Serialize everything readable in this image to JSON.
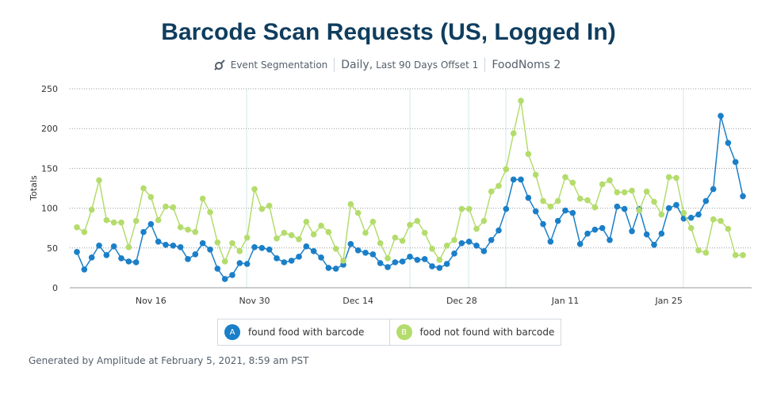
{
  "chart_data": {
    "type": "line",
    "title": "Barcode Scan Requests (US, Logged In)",
    "analysis": "Event Segmentation",
    "interval": "Daily,",
    "range": "Last 90 Days Offset 1",
    "project": "FoodNoms 2",
    "y_label": "Totals",
    "footer": "Generated by Amplitude at February 5, 2021, 8:59 am PST",
    "ylim": [
      0,
      250
    ],
    "yticks": [
      0,
      50,
      100,
      150,
      200,
      250
    ],
    "grid": true,
    "categories": [
      null,
      null,
      null,
      null,
      null,
      null,
      null,
      null,
      null,
      null,
      "Nov 16",
      null,
      null,
      null,
      null,
      null,
      null,
      null,
      null,
      null,
      null,
      null,
      null,
      null,
      "Nov 30",
      null,
      null,
      null,
      null,
      null,
      null,
      null,
      null,
      null,
      null,
      null,
      null,
      null,
      "Dec 14",
      null,
      null,
      null,
      null,
      null,
      null,
      null,
      null,
      null,
      null,
      null,
      null,
      null,
      "Dec 28",
      null,
      null,
      null,
      null,
      null,
      null,
      null,
      null,
      null,
      null,
      null,
      null,
      null,
      "Jan 11",
      null,
      null,
      null,
      null,
      null,
      null,
      null,
      null,
      null,
      null,
      null,
      null,
      null,
      "Jan 25",
      null,
      null,
      null,
      null,
      null,
      null,
      null,
      null,
      null,
      null
    ],
    "series": [
      {
        "name": "found food with barcode",
        "marker_label": "A",
        "color": "#1a7fc8",
        "values": [
          45,
          23,
          38,
          53,
          41,
          52,
          37,
          33,
          32,
          70,
          80,
          58,
          54,
          53,
          51,
          36,
          42,
          56,
          48,
          24,
          11,
          16,
          31,
          30,
          51,
          50,
          48,
          37,
          32,
          34,
          39,
          52,
          46,
          38,
          25,
          24,
          29,
          55,
          47,
          44,
          42,
          31,
          26,
          32,
          33,
          39,
          35,
          36,
          27,
          25,
          30,
          43,
          56,
          58,
          53,
          46,
          60,
          72,
          99,
          136,
          136,
          113,
          96,
          80,
          58,
          84,
          97,
          94,
          55,
          68,
          73,
          75,
          60,
          102,
          99,
          71,
          99,
          67,
          54,
          68,
          100,
          104,
          87,
          88,
          92,
          109,
          124,
          216,
          182,
          158,
          115
        ]
      },
      {
        "name": "food not found with barcode",
        "marker_label": "B",
        "color": "#b4dc6c",
        "values": [
          76,
          70,
          98,
          135,
          85,
          82,
          82,
          51,
          84,
          125,
          114,
          85,
          102,
          101,
          76,
          73,
          70,
          112,
          95,
          57,
          33,
          56,
          46,
          63,
          124,
          99,
          103,
          62,
          69,
          66,
          61,
          83,
          67,
          78,
          70,
          49,
          34,
          105,
          94,
          69,
          83,
          56,
          37,
          63,
          59,
          79,
          84,
          69,
          49,
          35,
          53,
          60,
          99,
          99,
          74,
          84,
          121,
          128,
          149,
          194,
          235,
          168,
          142,
          109,
          102,
          109,
          139,
          132,
          112,
          110,
          101,
          130,
          135,
          120,
          120,
          122,
          97,
          121,
          108,
          92,
          139,
          138,
          94,
          75,
          47,
          44,
          86,
          84,
          74,
          41,
          41
        ]
      }
    ]
  }
}
